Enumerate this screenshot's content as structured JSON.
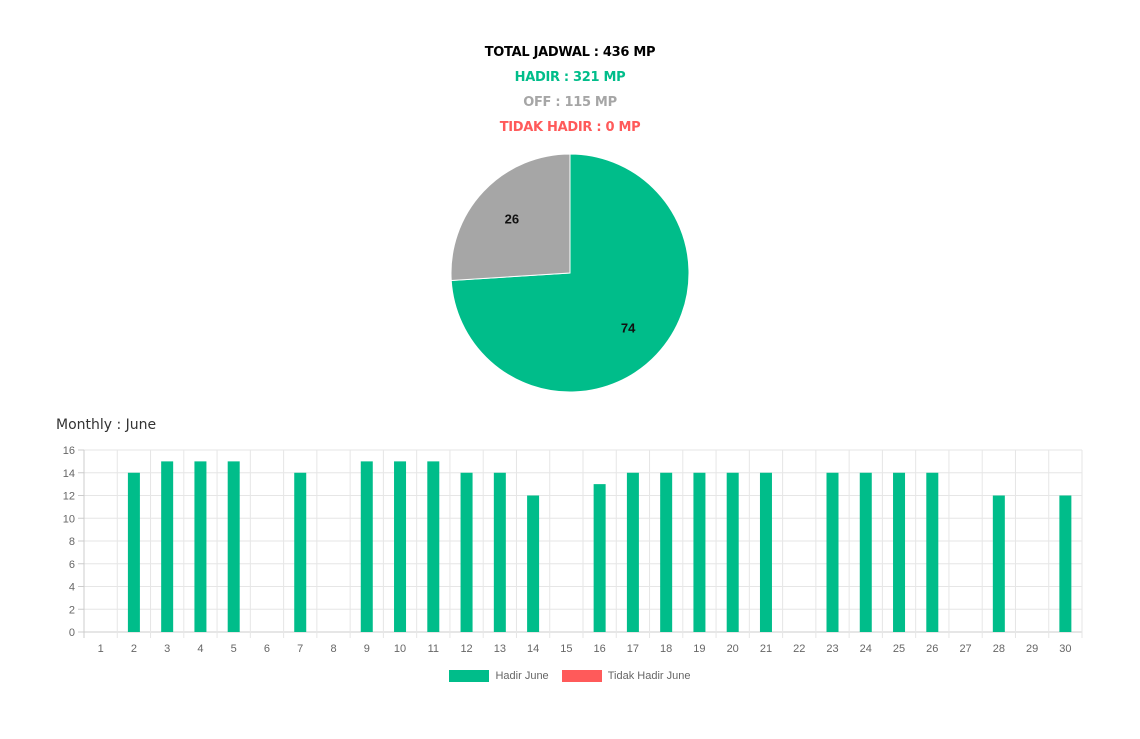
{
  "summary": {
    "total": "TOTAL JADWAL : 436 MP",
    "hadir": "HADIR : 321 MP",
    "off": "OFF : 115 MP",
    "tidak_hadir": "TIDAK HADIR : 0 MP"
  },
  "colors": {
    "hadir": "#00bd8a",
    "off": "#a6a6a6",
    "tidak_hadir": "#ff5a5a",
    "total": "#000000",
    "grid": "#e6e6e6",
    "axis": "#cccccc",
    "tick": "#666666"
  },
  "monthly_title": "Monthly : June",
  "chart_data": [
    {
      "type": "pie",
      "labels": [
        "74",
        "26"
      ],
      "values": [
        74,
        26
      ],
      "colors": [
        "#00bd8a",
        "#a6a6a6"
      ]
    },
    {
      "type": "bar",
      "categories": [
        "1",
        "2",
        "3",
        "4",
        "5",
        "6",
        "7",
        "8",
        "9",
        "10",
        "11",
        "12",
        "13",
        "14",
        "15",
        "16",
        "17",
        "18",
        "19",
        "20",
        "21",
        "22",
        "23",
        "24",
        "25",
        "26",
        "27",
        "28",
        "29",
        "30"
      ],
      "series": [
        {
          "name": "Hadir June",
          "color": "#00bd8a",
          "values": [
            0,
            14,
            15,
            15,
            15,
            0,
            14,
            0,
            15,
            15,
            15,
            14,
            14,
            12,
            0,
            13,
            14,
            14,
            14,
            14,
            14,
            0,
            14,
            14,
            14,
            14,
            0,
            12,
            0,
            12
          ]
        },
        {
          "name": "Tidak Hadir June",
          "color": "#ff5a5a",
          "values": [
            0,
            0,
            0,
            0,
            0,
            0,
            0,
            0,
            0,
            0,
            0,
            0,
            0,
            0,
            0,
            0,
            0,
            0,
            0,
            0,
            0,
            0,
            0,
            0,
            0,
            0,
            0,
            0,
            0,
            0
          ]
        }
      ],
      "ylim": [
        0,
        16
      ],
      "yticks": [
        "0",
        "2",
        "4",
        "6",
        "8",
        "10",
        "12",
        "14",
        "16"
      ],
      "grid": true,
      "legend_position": "bottom"
    }
  ],
  "legend": [
    {
      "label": "Hadir June",
      "color": "#00bd8a"
    },
    {
      "label": "Tidak Hadir June",
      "color": "#ff5a5a"
    }
  ]
}
